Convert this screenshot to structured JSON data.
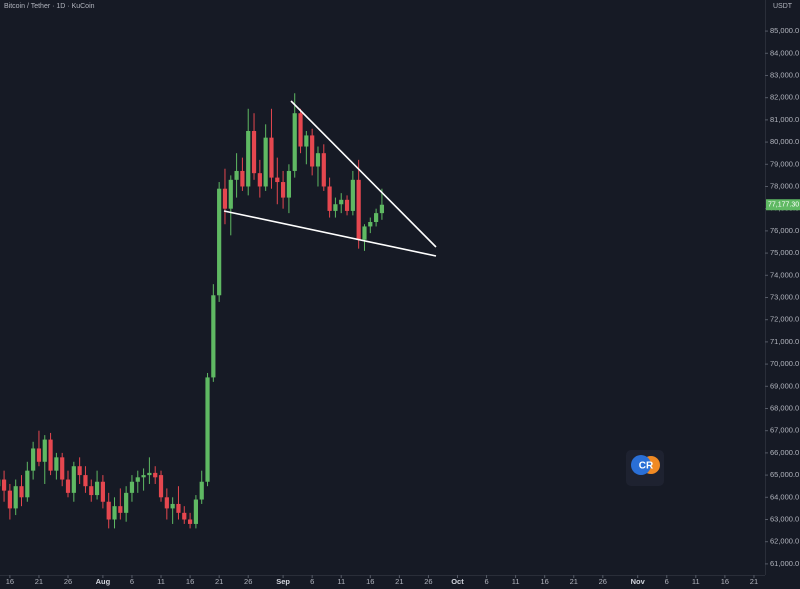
{
  "chart_data": {
    "type": "candlestick",
    "title": "Bitcoin / Tether · 1D · KuCoin",
    "currency_label": "USDT",
    "last_price_label": "77,177.30",
    "logo_text": "CR",
    "up_color": "#5fb963",
    "down_color": "#e5474f",
    "x": [
      13,
      14,
      15,
      16,
      17,
      18,
      19,
      20,
      21,
      22,
      23,
      24,
      25,
      26,
      27,
      28,
      29,
      30,
      31,
      32,
      33,
      34,
      35,
      36,
      37,
      38,
      39,
      40,
      41,
      42,
      43,
      44,
      45,
      46,
      47,
      48,
      49,
      50,
      51,
      52,
      53,
      54,
      55,
      56,
      57,
      58,
      59,
      60,
      61,
      62,
      63,
      64,
      65,
      66,
      67,
      68,
      69,
      70,
      71,
      72,
      73,
      74,
      75,
      76,
      77,
      78,
      79
    ],
    "open": [
      64500,
      64800,
      64300,
      63500,
      64500,
      64000,
      65200,
      66200,
      65600,
      66600,
      65200,
      65800,
      64800,
      64200,
      65400,
      65000,
      64500,
      64100,
      64700,
      63800,
      63000,
      63600,
      63300,
      64200,
      64700,
      64900,
      65000,
      65100,
      65000,
      64000,
      63500,
      63700,
      63300,
      63000,
      62800,
      63900,
      64700,
      69400,
      73100,
      77900,
      77000,
      78300,
      78700,
      78000,
      80500,
      78600,
      78000,
      80200,
      78400,
      78200,
      77500,
      78700,
      81300,
      79800,
      80300,
      78900,
      79500,
      78000,
      76900,
      77200,
      77400,
      76900,
      78300,
      75600,
      76200,
      76400,
      76800
    ],
    "high": [
      65500,
      65200,
      64600,
      64800,
      65000,
      65600,
      66500,
      67000,
      66800,
      66900,
      66000,
      66000,
      65200,
      65600,
      65800,
      65400,
      64800,
      65200,
      65000,
      64200,
      64000,
      64400,
      64500,
      65000,
      65200,
      65300,
      65800,
      65400,
      65200,
      64400,
      64000,
      64500,
      63600,
      63300,
      64100,
      65200,
      69600,
      73600,
      78200,
      78800,
      78500,
      79500,
      79300,
      81500,
      81300,
      79200,
      80800,
      81500,
      79300,
      78700,
      79000,
      82200,
      81500,
      80500,
      80600,
      79800,
      79900,
      78400,
      77500,
      77700,
      77600,
      78700,
      79200,
      76300,
      76600,
      77000,
      77900
    ],
    "low": [
      62500,
      63800,
      63000,
      63200,
      63600,
      63800,
      64800,
      65400,
      64600,
      65000,
      64800,
      64500,
      64000,
      63800,
      64600,
      64200,
      63800,
      63900,
      63500,
      62600,
      62600,
      63000,
      62900,
      63800,
      64200,
      64300,
      64600,
      64600,
      63800,
      63000,
      62800,
      63000,
      62800,
      62600,
      62600,
      63700,
      64500,
      69200,
      72800,
      76300,
      75800,
      77500,
      77800,
      77600,
      78300,
      77500,
      77800,
      77900,
      77200,
      77000,
      76800,
      78400,
      79500,
      79000,
      78500,
      78000,
      77800,
      76600,
      76600,
      76800,
      76700,
      76700,
      75200,
      75100,
      75900,
      76200,
      76500
    ],
    "close": [
      64800,
      64300,
      63500,
      64500,
      64000,
      65200,
      66200,
      65600,
      66600,
      65200,
      65800,
      64800,
      64200,
      65400,
      65000,
      64500,
      64100,
      64700,
      63800,
      63000,
      63600,
      63300,
      64200,
      64700,
      64900,
      65000,
      65100,
      64900,
      64000,
      63500,
      63700,
      63300,
      63000,
      62800,
      63900,
      64700,
      69400,
      73100,
      77900,
      77000,
      78300,
      78700,
      78000,
      80500,
      78600,
      78000,
      80200,
      78400,
      78200,
      77500,
      78700,
      81300,
      79800,
      80300,
      78900,
      79500,
      78000,
      76900,
      77200,
      77400,
      76900,
      78300,
      75600,
      76200,
      76400,
      76800,
      77177.3
    ],
    "xlim": [
      13.3,
      144.9
    ],
    "xticks": [
      {
        "value": 15,
        "label": "16"
      },
      {
        "value": 20,
        "label": "21"
      },
      {
        "value": 25,
        "label": "26"
      },
      {
        "value": 31,
        "label": "Aug"
      },
      {
        "value": 36,
        "label": "6"
      },
      {
        "value": 41,
        "label": "11"
      },
      {
        "value": 46,
        "label": "16"
      },
      {
        "value": 51,
        "label": "21"
      },
      {
        "value": 56,
        "label": "26"
      },
      {
        "value": 62,
        "label": "Sep"
      },
      {
        "value": 67,
        "label": "6"
      },
      {
        "value": 72,
        "label": "11"
      },
      {
        "value": 77,
        "label": "16"
      },
      {
        "value": 82,
        "label": "21"
      },
      {
        "value": 87,
        "label": "26"
      },
      {
        "value": 92,
        "label": "Oct"
      },
      {
        "value": 97,
        "label": "6"
      },
      {
        "value": 102,
        "label": "11"
      },
      {
        "value": 107,
        "label": "16"
      },
      {
        "value": 112,
        "label": "21"
      },
      {
        "value": 117,
        "label": "26"
      },
      {
        "value": 123,
        "label": "Nov"
      },
      {
        "value": 128,
        "label": "6"
      },
      {
        "value": 133,
        "label": "11"
      },
      {
        "value": 138,
        "label": "16"
      },
      {
        "value": 143,
        "label": "21"
      }
    ],
    "ylim": [
      60500,
      86400
    ],
    "yticks": [
      {
        "value": 61000,
        "label": "61,000.0"
      },
      {
        "value": 62000,
        "label": "62,000.0"
      },
      {
        "value": 63000,
        "label": "63,000.0"
      },
      {
        "value": 64000,
        "label": "64,000.0"
      },
      {
        "value": 65000,
        "label": "65,000.0"
      },
      {
        "value": 66000,
        "label": "66,000.0"
      },
      {
        "value": 67000,
        "label": "67,000.0"
      },
      {
        "value": 68000,
        "label": "68,000.0"
      },
      {
        "value": 69000,
        "label": "69,000.0"
      },
      {
        "value": 70000,
        "label": "70,000.0"
      },
      {
        "value": 71000,
        "label": "71,000.0"
      },
      {
        "value": 72000,
        "label": "72,000.0"
      },
      {
        "value": 73000,
        "label": "73,000.0"
      },
      {
        "value": 74000,
        "label": "74,000.0"
      },
      {
        "value": 75000,
        "label": "75,000.0"
      },
      {
        "value": 76000,
        "label": "76,000.0"
      },
      {
        "value": 77000,
        "label": "77,000.0"
      },
      {
        "value": 78000,
        "label": "78,000.0"
      },
      {
        "value": 79000,
        "label": "79,000.0"
      },
      {
        "value": 80000,
        "label": "80,000.0"
      },
      {
        "value": 81000,
        "label": "81,000.0"
      },
      {
        "value": 82000,
        "label": "82,000.0"
      },
      {
        "value": 83000,
        "label": "83,000.0"
      },
      {
        "value": 84000,
        "label": "84,000.0"
      },
      {
        "value": 85000,
        "label": "85,000.0"
      }
    ]
  }
}
